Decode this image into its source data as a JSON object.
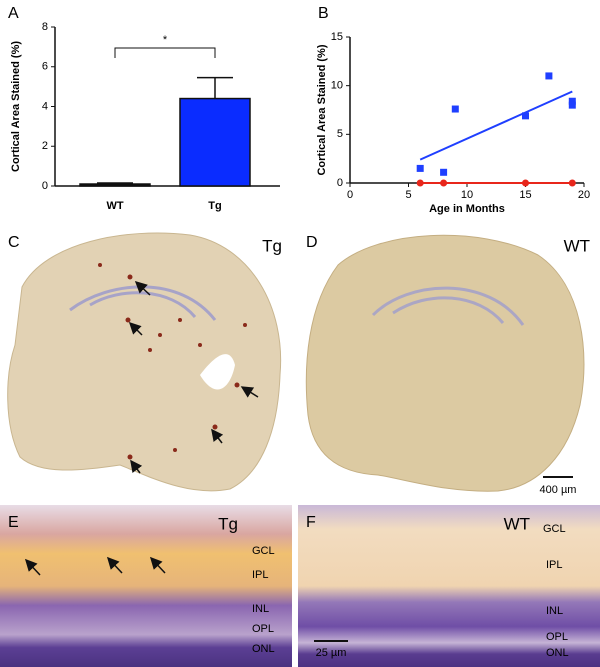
{
  "chart_data": [
    {
      "type": "bar",
      "panel": "A",
      "ylabel": "Cortical Area Stained (%)",
      "categories": [
        "WT",
        "Tg"
      ],
      "values": [
        0.1,
        4.4
      ],
      "errors": [
        0.05,
        1.05
      ],
      "colors": [
        "#111111",
        "#0a2cff"
      ],
      "ylim": [
        0,
        8
      ],
      "yticks": [
        0,
        2,
        4,
        6,
        8
      ],
      "annotation": "*"
    },
    {
      "type": "scatter",
      "panel": "B",
      "xlabel": "Age in Months",
      "ylabel": "Cortical Area Stained (%)",
      "xlim": [
        0,
        20
      ],
      "xticks": [
        0,
        5,
        10,
        15,
        20
      ],
      "ylim": [
        0,
        15
      ],
      "yticks": [
        0,
        5,
        10,
        15
      ],
      "series": [
        {
          "color": "#1f3fff",
          "marker": "square",
          "x": [
            6,
            8,
            9,
            15,
            17,
            19,
            19
          ],
          "values": [
            1.5,
            1.1,
            7.6,
            6.9,
            11,
            8.4,
            8.0
          ],
          "trend_x": [
            6,
            19
          ],
          "trend_y": [
            2.4,
            9.4
          ]
        },
        {
          "color": "#e8261b",
          "marker": "circle",
          "x": [
            6,
            8,
            15,
            19
          ],
          "values": [
            0,
            0,
            0,
            0
          ],
          "trend_x": [
            6,
            19
          ],
          "trend_y": [
            0,
            0
          ]
        }
      ]
    }
  ],
  "images": [
    {
      "label": "C",
      "tag": "Tg"
    },
    {
      "label": "D",
      "tag": "WT",
      "scale": "400 µm"
    },
    {
      "label": "E",
      "tag": "Tg",
      "layers": [
        "GCL",
        "IPL",
        "INL",
        "OPL",
        "ONL"
      ]
    },
    {
      "label": "F",
      "tag": "WT",
      "layers": [
        "GCL",
        "IPL",
        "INL",
        "OPL",
        "ONL"
      ],
      "scale": "25 µm"
    }
  ]
}
